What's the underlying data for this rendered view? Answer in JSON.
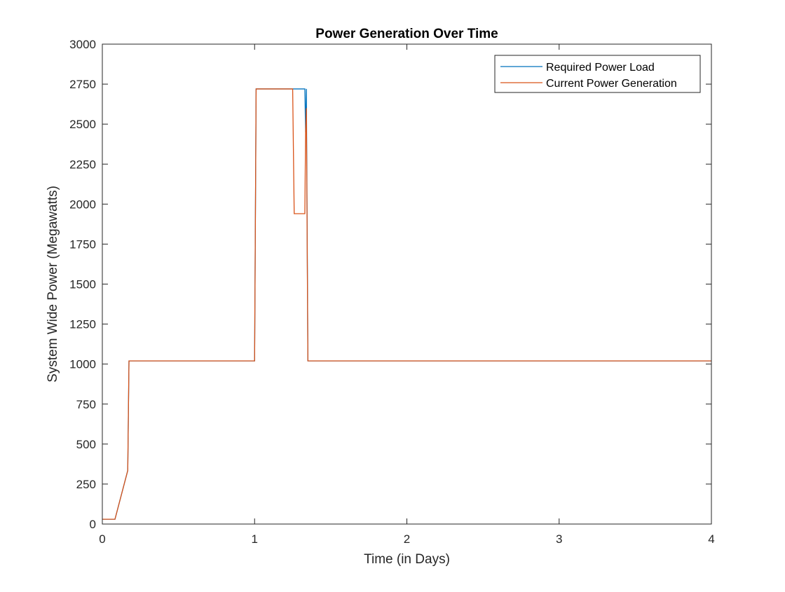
{
  "chart_data": {
    "type": "line",
    "title": "Power Generation Over Time",
    "xlabel": "Time (in Days)",
    "ylabel": "System Wide Power (Megawatts)",
    "xlim": [
      0,
      4
    ],
    "ylim": [
      0,
      3000
    ],
    "xticks": [
      0,
      1,
      2,
      3,
      4
    ],
    "yticks": [
      0,
      250,
      500,
      750,
      1000,
      1250,
      1500,
      1750,
      2000,
      2250,
      2500,
      2750,
      3000
    ],
    "grid": false,
    "legend_position": "top-right",
    "series": [
      {
        "name": "Required Power Load",
        "color": "#0072BD",
        "x": [
          0,
          0.083,
          0.167,
          0.175,
          1.0,
          1.01,
          1.33,
          1.335,
          1.34,
          1.35,
          4.0
        ],
        "y": [
          30,
          30,
          335,
          1020,
          1020,
          2720,
          2720,
          2450,
          2720,
          1020,
          1020
        ]
      },
      {
        "name": "Current Power Generation",
        "color": "#D95319",
        "x": [
          0,
          0.083,
          0.167,
          0.175,
          1.0,
          1.01,
          1.25,
          1.26,
          1.33,
          1.335,
          1.34,
          1.35,
          4.0
        ],
        "y": [
          30,
          30,
          335,
          1020,
          1020,
          2720,
          2720,
          1940,
          1940,
          2450,
          2600,
          1020,
          1020
        ]
      }
    ]
  }
}
